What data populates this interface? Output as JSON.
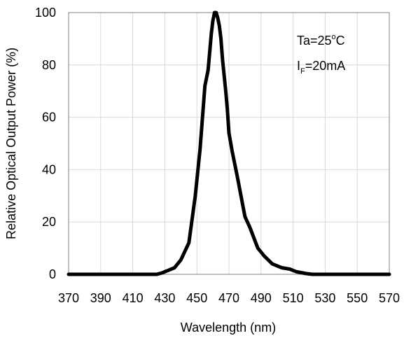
{
  "chart_data": {
    "type": "line",
    "xlabel": "Wavelength (nm)",
    "ylabel": "Relative Optical Output Power (%)",
    "xlim": [
      370,
      570
    ],
    "ylim": [
      0,
      100
    ],
    "x_ticks": [
      "370",
      "390",
      "410",
      "430",
      "450",
      "470",
      "490",
      "510",
      "530",
      "550",
      "570"
    ],
    "y_ticks": [
      "0",
      "20",
      "40",
      "60",
      "80",
      "100"
    ],
    "grid": true,
    "annotations": {
      "temp_prefix": "Ta=25",
      "temp_degree": "o",
      "temp_unit": "C",
      "current_prefix": "I",
      "current_sub": "F",
      "current_value": "=20mA"
    },
    "series": [
      {
        "x": [
          370,
          420,
          425,
          428,
          432,
          436,
          440,
          445,
          449,
          452,
          455,
          457,
          458,
          459,
          460,
          461,
          462,
          463,
          464,
          465,
          466,
          467,
          468,
          469,
          470,
          472,
          475,
          480,
          483,
          488,
          492,
          497,
          503,
          508,
          512,
          518,
          522,
          526,
          570
        ],
        "y": [
          0,
          0,
          0,
          0.5,
          1.5,
          2.5,
          5.5,
          12,
          30,
          48,
          72,
          78,
          85,
          92,
          97,
          100,
          100,
          98,
          95,
          90,
          82,
          76,
          70,
          63,
          54,
          47,
          38,
          22,
          18,
          10,
          7,
          4,
          2.5,
          2,
          1,
          0.3,
          0,
          0,
          0
        ]
      }
    ]
  }
}
